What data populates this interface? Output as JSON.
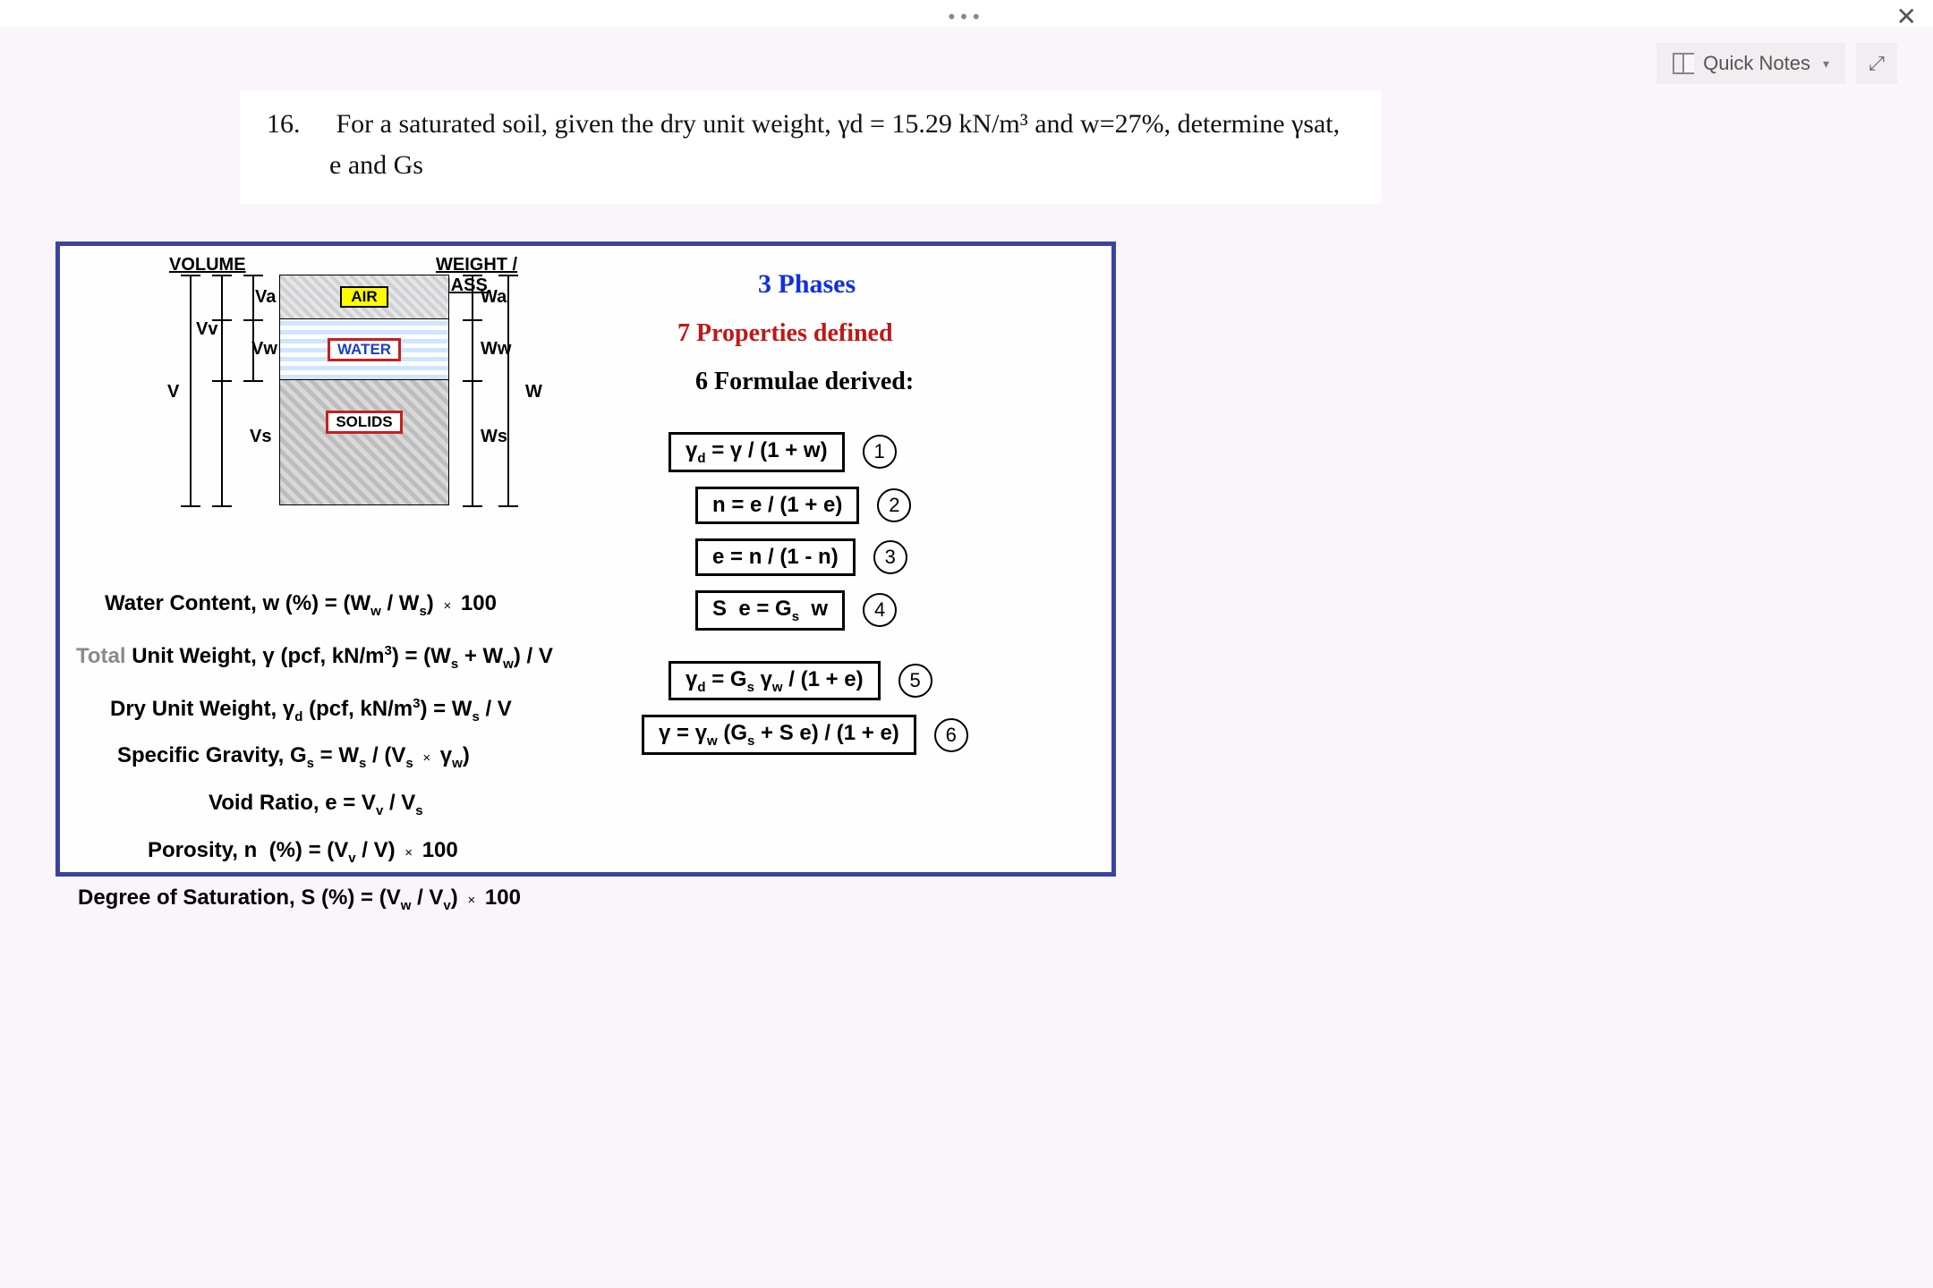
{
  "topbar": {
    "menu_dots": "•••",
    "close": "✕"
  },
  "quicknotes": {
    "label": "Quick Notes",
    "chevron": "▾",
    "expand_glyph": "⤢"
  },
  "problem": {
    "number": "16.",
    "line1_html": "For a saturated soil, given the dry unit weight, γd = 15.29 kN/m³ and w=27%, determine γsat,",
    "line2": "e and Gs"
  },
  "diagram": {
    "volume_header": "VOLUME",
    "weight_header": "WEIGHT / MASS",
    "air_tag": "AIR",
    "water_tag": "WATER",
    "solids_tag": "SOLIDS",
    "labels": {
      "Va": "Va",
      "Vw": "Vw",
      "Vv": "Vv",
      "Vs": "Vs",
      "V": "V",
      "Wa": "Wa",
      "Ww": "Ww",
      "Ws": "Ws",
      "W": "W"
    }
  },
  "rightcol": {
    "t3": "3 Phases",
    "t7": "7 Properties defined",
    "t6": "6 Formulae derived:"
  },
  "defs": {
    "d1_html": "Water Content, <b>w</b> (%) = (W<span class='sub'>w</span> / W<span class='sub'>s</span>) <span class='small-x'>×</span> 100",
    "d2_html": "<span class='grey'>Total</span> Unit Weight, <b>γ</b> (pcf, kN/m<span class='sup'>3</span>) = (W<span class='sub'>s</span> + W<span class='sub'>w</span>) / V",
    "d3_html": "Dry Unit Weight, <b>γ</b><span class='sub'>d</span> (pcf, kN/m<span class='sup'>3</span>) = W<span class='sub'>s</span> / V",
    "d4_html": "Specific Gravity, G<span class='sub'>s</span> = W<span class='sub'>s</span> / (V<span class='sub'>s</span> <span class='small-x'>×</span> γ<span class='sub'>w</span>)",
    "d5_html": "Void Ratio, e = V<span class='sub'>v</span> / V<span class='sub'>s</span>",
    "d6_html": "Porosity, n&nbsp; (%) = (V<span class='sub'>v</span> / V) <span class='small-x'>×</span> 100",
    "d7_html": "Degree of Saturation, S (%) = (V<span class='sub'>w</span> / V<span class='sub'>v</span>) <span class='small-x'>×</span> 100"
  },
  "formulae": {
    "f1_html": "γ<span class='sub'>d</span> = γ / (1 + w)",
    "f2_html": "n = e / (1 + e)",
    "f3_html": "e = n / (1 - n)",
    "f4_html": "S&nbsp; e = G<span class='sub'>s</span>&nbsp; w",
    "f5_html": "γ<span class='sub'>d</span> = G<span class='sub'>s</span> γ<span class='sub'>w</span> / (1 + e)",
    "f6_html": "γ = γ<span class='sub'>w</span> (G<span class='sub'>s</span> + S e) / (1 + e)",
    "n1": "1",
    "n2": "2",
    "n3": "3",
    "n4": "4",
    "n5": "5",
    "n6": "6"
  }
}
